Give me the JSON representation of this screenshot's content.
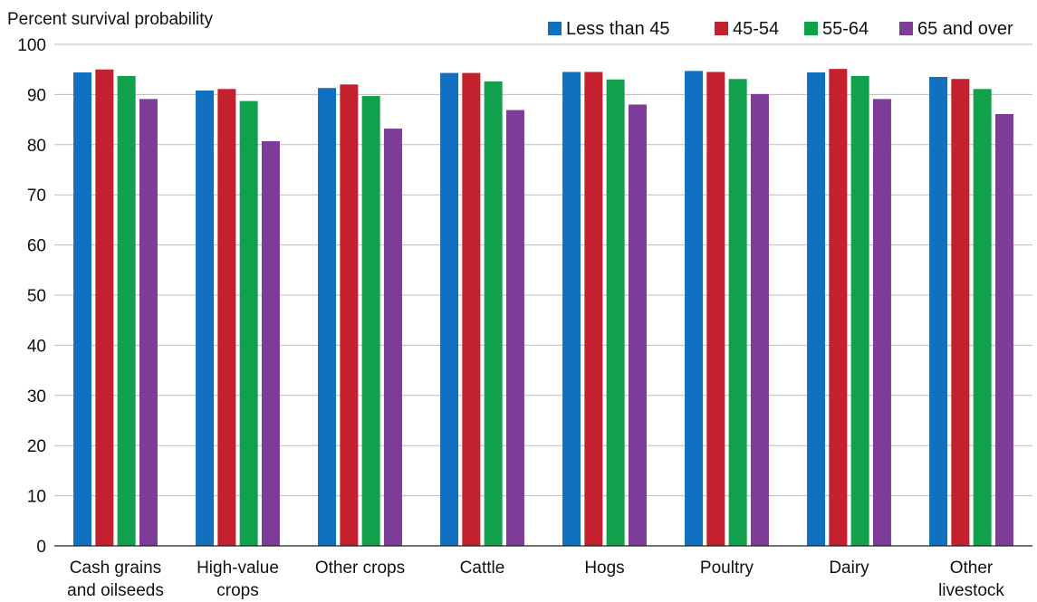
{
  "chart_data": {
    "type": "bar",
    "title": "",
    "ylabel": "Percent survival probability",
    "xlabel": "",
    "ylim": [
      0,
      100
    ],
    "yticks": [
      0,
      10,
      20,
      30,
      40,
      50,
      60,
      70,
      80,
      90,
      100
    ],
    "grid": true,
    "legend_position": "top-right",
    "categories": [
      [
        "Cash grains",
        "and oilseeds"
      ],
      [
        "High-value",
        "crops"
      ],
      [
        "Other crops"
      ],
      [
        "Cattle"
      ],
      [
        "Hogs"
      ],
      [
        "Poultry"
      ],
      [
        "Dairy"
      ],
      [
        "Other",
        "livestock"
      ]
    ],
    "series": [
      {
        "name": "Less than 45",
        "color": "#1170c0",
        "values": [
          94.4,
          90.8,
          91.3,
          94.3,
          94.5,
          94.7,
          94.4,
          93.5
        ]
      },
      {
        "name": "45-54",
        "color": "#c4202e",
        "values": [
          95.0,
          91.1,
          92.0,
          94.3,
          94.5,
          94.5,
          95.1,
          93.1
        ]
      },
      {
        "name": "55-64",
        "color": "#11a04b",
        "values": [
          93.7,
          88.7,
          89.7,
          92.6,
          93.0,
          93.1,
          93.7,
          91.1
        ]
      },
      {
        "name": "65 and over",
        "color": "#7d3c98",
        "values": [
          89.1,
          80.7,
          83.2,
          86.9,
          88.0,
          90.1,
          89.1,
          86.1
        ]
      }
    ]
  }
}
